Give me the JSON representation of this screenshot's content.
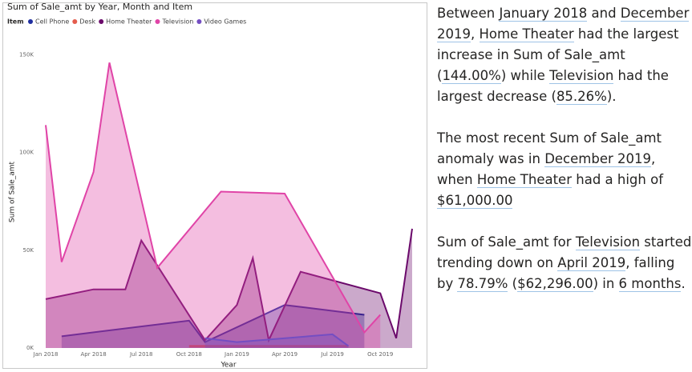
{
  "chart_data": {
    "type": "area",
    "title": "Sum of Sale_amt by Year, Month and Item",
    "legend_title": "Item",
    "x_label": "Year",
    "y_label": "Sum of Sale_amt",
    "xlim": [
      "2018-01",
      "2019-12"
    ],
    "xticks": [
      {
        "value": "2018-01",
        "label": "Jan 2018"
      },
      {
        "value": "2018-04",
        "label": "Apr 2018"
      },
      {
        "value": "2018-07",
        "label": "Jul 2018"
      },
      {
        "value": "2018-10",
        "label": "Oct 2018"
      },
      {
        "value": "2019-01",
        "label": "Jan 2019"
      },
      {
        "value": "2019-04",
        "label": "Apr 2019"
      },
      {
        "value": "2019-07",
        "label": "Jul 2019"
      },
      {
        "value": "2019-10",
        "label": "Oct 2019"
      }
    ],
    "ylim": [
      0,
      160000
    ],
    "yticks": [
      {
        "value": 0,
        "label": "0K"
      },
      {
        "value": 50000,
        "label": "50K"
      },
      {
        "value": 100000,
        "label": "100K"
      },
      {
        "value": 150000,
        "label": "150K"
      }
    ],
    "series": [
      {
        "name": "Cell Phone",
        "color": "#1f2ea0",
        "x": [
          "2018-02",
          "2018-10",
          "2018-11",
          "2019-04",
          "2019-09"
        ],
        "values": [
          6000,
          14000,
          3000,
          22000,
          17000
        ]
      },
      {
        "name": "Desk",
        "color": "#e45c4d",
        "x": [
          "2018-10",
          "2019-08"
        ],
        "values": [
          1000,
          1000
        ]
      },
      {
        "name": "Home Theater",
        "color": "#6b0a6b",
        "x": [
          "2018-01",
          "2018-04",
          "2018-06",
          "2018-07",
          "2018-11",
          "2019-01",
          "2019-02",
          "2019-03",
          "2019-05",
          "2019-10",
          "2019-11",
          "2019-12"
        ],
        "values": [
          25000,
          30000,
          30000,
          55000,
          4000,
          22000,
          46000,
          4000,
          39000,
          28000,
          5000,
          61000
        ]
      },
      {
        "name": "Television",
        "color": "#e044a7",
        "x": [
          "2018-01",
          "2018-02",
          "2018-04",
          "2018-05",
          "2018-08",
          "2018-12",
          "2019-04",
          "2019-09",
          "2019-10"
        ],
        "values": [
          114000,
          44000,
          90000,
          146000,
          41000,
          80000,
          79000,
          8000,
          17000
        ]
      },
      {
        "name": "Video Games",
        "color": "#744ec2",
        "x": [
          "2018-11",
          "2019-01",
          "2019-07",
          "2019-08"
        ],
        "values": [
          5000,
          3000,
          7000,
          1000
        ]
      }
    ]
  },
  "narrative": {
    "paragraphs": [
      [
        {
          "text": "Between "
        },
        {
          "text": "January 2018",
          "highlight": true
        },
        {
          "text": " and "
        },
        {
          "text": "December 2019",
          "highlight": true
        },
        {
          "text": ", "
        },
        {
          "text": "Home Theater",
          "highlight": true
        },
        {
          "text": " had the largest increase in Sum of Sale_amt ("
        },
        {
          "text": "144.00%",
          "highlight": true
        },
        {
          "text": ") while "
        },
        {
          "text": "Television",
          "highlight": true
        },
        {
          "text": " had the largest decrease ("
        },
        {
          "text": "85.26%",
          "highlight": true
        },
        {
          "text": ")."
        }
      ],
      [
        {
          "text": "The most recent Sum of Sale_amt anomaly was in "
        },
        {
          "text": "December 2019",
          "highlight": true
        },
        {
          "text": ", when "
        },
        {
          "text": "Home Theater",
          "highlight": true
        },
        {
          "text": " had a high of "
        },
        {
          "text": "$61,000.00",
          "highlight": true
        }
      ],
      [
        {
          "text": "Sum of Sale_amt for "
        },
        {
          "text": "Television",
          "highlight": true
        },
        {
          "text": " started trending down on "
        },
        {
          "text": "April 2019",
          "highlight": true
        },
        {
          "text": ", falling by "
        },
        {
          "text": "78.79%",
          "highlight": true
        },
        {
          "text": " ("
        },
        {
          "text": "$62,296.00",
          "highlight": true
        },
        {
          "text": ") in "
        },
        {
          "text": "6 months",
          "highlight": true
        },
        {
          "text": "."
        }
      ]
    ]
  }
}
